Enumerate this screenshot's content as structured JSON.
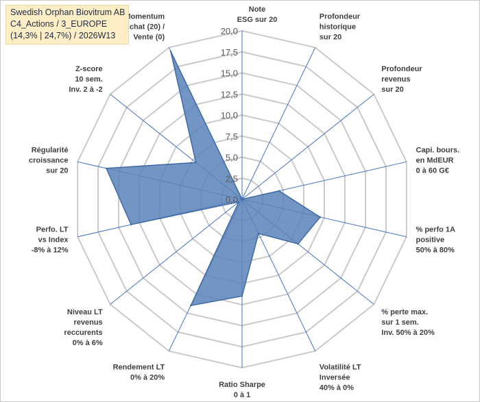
{
  "title_box": {
    "line1": "Swedish Orphan Biovitrum AB",
    "line2": "C4_Actions / 3_EUROPE",
    "line3": "(14,3% | 24,7%) / 2026W13"
  },
  "chart_data": {
    "type": "radar",
    "title": "Swedish Orphan Biovitrum AB",
    "rmax": 20,
    "ticks": [
      0,
      2.5,
      5,
      7.5,
      10,
      12.5,
      15,
      17.5,
      20
    ],
    "tick_labels": [
      "0,0",
      "2,5",
      "5,0",
      "7,5",
      "10,0",
      "12,5",
      "15,0",
      "17,5",
      "20,0"
    ],
    "categories": [
      [
        "Note",
        "ESG sur 20"
      ],
      [
        "Profondeur",
        "historique",
        "sur 20"
      ],
      [
        "Profondeur",
        "revenus",
        "sur 20"
      ],
      [
        "Capi. bours.",
        "en MdEUR",
        "0 à 60 G€"
      ],
      [
        "% perfo 1A",
        "positive",
        "50% à 80%"
      ],
      [
        "% perte max.",
        "sur 1 sem.",
        "Inv. 50% à 20%"
      ],
      [
        "Volatilité LT",
        "Inversée",
        "40% à 0%"
      ],
      [
        "Ratio Sharpe",
        "0 à 1"
      ],
      [
        "Rendement LT",
        "0% à 20%"
      ],
      [
        "Niveau LT",
        "revenus",
        "reccurents",
        "0% à 6%"
      ],
      [
        "Perfo. LT",
        "vs Index",
        "-8% à 12%"
      ],
      [
        "Régularité",
        "croissance",
        "sur 20"
      ],
      [
        "Z-score",
        "10 sem.",
        "Inv. 2 à -2"
      ],
      [
        "Momentum",
        "Achat (20) /",
        "Vente (0)"
      ]
    ],
    "series": [
      {
        "name": "Swedish Orphan Biovitrum AB",
        "values": [
          0,
          0,
          0,
          4.5,
          9.5,
          8.5,
          4.5,
          11.5,
          14,
          0.5,
          13.5,
          16.5,
          7,
          19.5
        ],
        "fill": "#5b82b8",
        "stroke": "#3d6aa6"
      }
    ],
    "grid_color": "#c9c9c9",
    "spoke_color": "#4472c4"
  }
}
